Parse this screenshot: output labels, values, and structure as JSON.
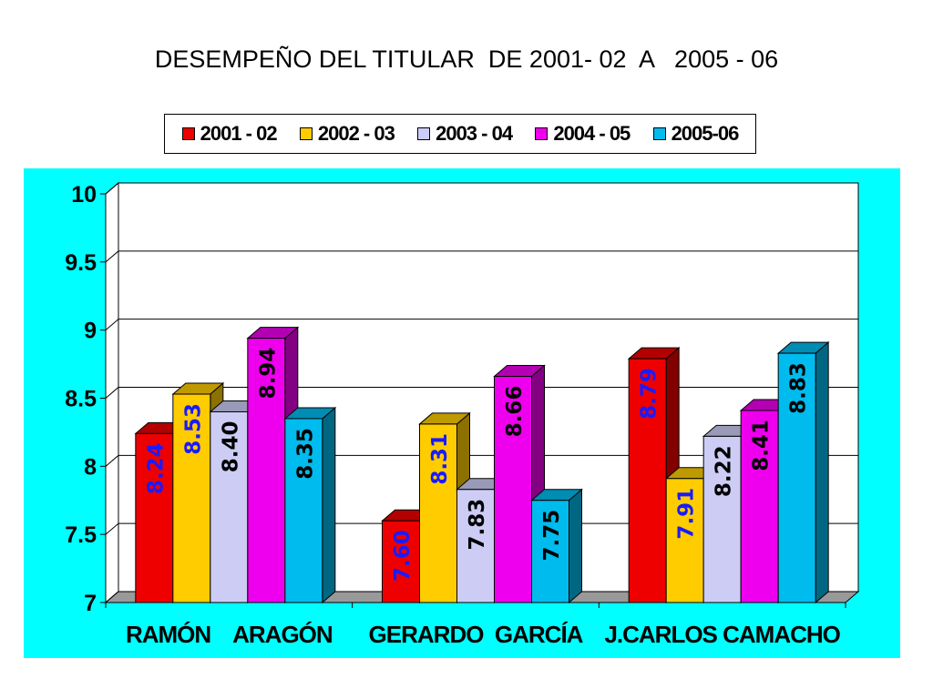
{
  "chart_data": {
    "type": "bar",
    "title": "DESEMPEÑO DEL TITULAR  DE 2001- 02  A   2005 - 06",
    "categories": [
      "RAMÓN    ARAGÓN",
      "GERARDO  GARCÍA",
      "J.CARLOS CAMACHO"
    ],
    "series": [
      {
        "name": "2001 - 02",
        "values": [
          8.24,
          7.6,
          8.79
        ],
        "color": "#ee0000",
        "label_color": "#1a1aff"
      },
      {
        "name": "2002 - 03",
        "values": [
          8.53,
          8.31,
          7.91
        ],
        "color": "#ffcc00",
        "label_color": "#1a1aff"
      },
      {
        "name": "2003 - 04",
        "values": [
          8.4,
          7.83,
          8.22
        ],
        "color": "#ccccf5",
        "label_color": "#000000"
      },
      {
        "name": "2004 - 05",
        "values": [
          8.94,
          8.66,
          8.41
        ],
        "color": "#ee00ee",
        "label_color": "#000000"
      },
      {
        "name": "2005-06",
        "values": [
          8.35,
          7.75,
          8.83
        ],
        "color": "#00bbee",
        "label_color": "#000000"
      }
    ],
    "data_labels": [
      [
        "8.24",
        "8.53",
        "8.40",
        "8.94",
        "8.35"
      ],
      [
        "7.60",
        "8.31",
        "7.83",
        "8.66",
        "7.75"
      ],
      [
        "8.79",
        "7.91",
        "8.22",
        "8.41",
        "8.83"
      ]
    ],
    "yticks": [
      "7",
      "7.5",
      "8",
      "8.5",
      "9",
      "9.5",
      "10"
    ],
    "ylim": [
      7,
      10
    ],
    "xlabel": "",
    "ylabel": "",
    "grid": true,
    "legend_position": "top",
    "background_color": "#00ffff"
  }
}
